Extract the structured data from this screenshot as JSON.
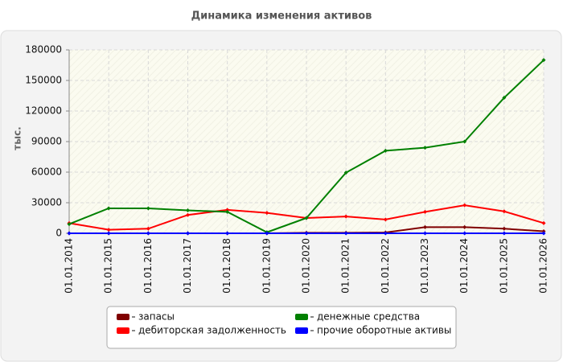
{
  "chart_data": {
    "type": "line",
    "title": "Динамика изменения активов",
    "y_label": "тыс.",
    "categories": [
      "01.01.2014",
      "01.01.2015",
      "01.01.2016",
      "01.01.2017",
      "01.01.2018",
      "01.01.2019",
      "01.01.2020",
      "01.01.2021",
      "01.01.2022",
      "01.01.2023",
      "01.01.2024",
      "01.01.2025",
      "01.01.2026"
    ],
    "series": [
      {
        "name": "запасы",
        "color": "#800000",
        "values": [
          0,
          0,
          0,
          0,
          0,
          0,
          500,
          500,
          800,
          6000,
          6000,
          4500,
          2000
        ]
      },
      {
        "name": "дебиторская задолженность",
        "color": "#ff0000",
        "values": [
          10000,
          3500,
          4500,
          18000,
          23000,
          20000,
          15000,
          16500,
          13500,
          21000,
          27500,
          21500,
          10000
        ]
      },
      {
        "name": "денежные средства",
        "color": "#008000",
        "values": [
          9000,
          24500,
          24500,
          22500,
          21000,
          1000,
          15000,
          59500,
          81000,
          84000,
          90000,
          133000,
          170000
        ]
      },
      {
        "name": "прочие оборотные активы",
        "color": "#0000ff",
        "values": [
          0,
          0,
          0,
          0,
          0,
          0,
          0,
          0,
          0,
          0,
          0,
          0,
          0
        ]
      }
    ],
    "ylim": [
      0,
      180000
    ],
    "yticks": [
      0,
      30000,
      60000,
      90000,
      120000,
      150000,
      180000
    ],
    "grid": true
  }
}
